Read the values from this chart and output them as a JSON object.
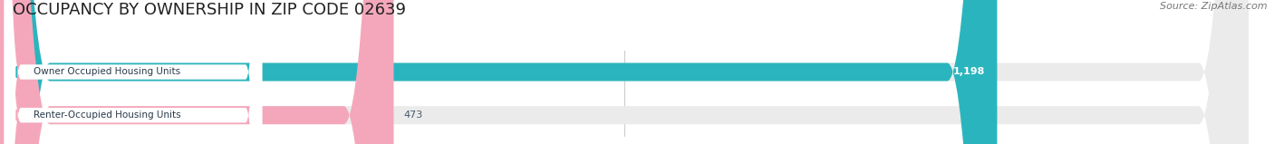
{
  "title": "OCCUPANCY BY OWNERSHIP IN ZIP CODE 02639",
  "source_text": "Source: ZipAtlas.com",
  "categories": [
    "Owner Occupied Housing Units",
    "Renter-Occupied Housing Units"
  ],
  "values": [
    1198,
    473
  ],
  "bar_colors": [
    "#2ab5be",
    "#f4a7bb"
  ],
  "value_labels": [
    "1,198",
    "473"
  ],
  "value_label_colors": [
    "#ffffff",
    "#4a5a6a"
  ],
  "xlim": [
    0,
    1500
  ],
  "xticks": [
    0,
    750,
    1500
  ],
  "background_color": "#ffffff",
  "bar_background_color": "#ebebeb",
  "title_fontsize": 13,
  "source_fontsize": 8,
  "bar_height": 0.42,
  "rounding_size": 60,
  "label_box_color": [
    "#2ab5be",
    "#f4a7bb"
  ]
}
